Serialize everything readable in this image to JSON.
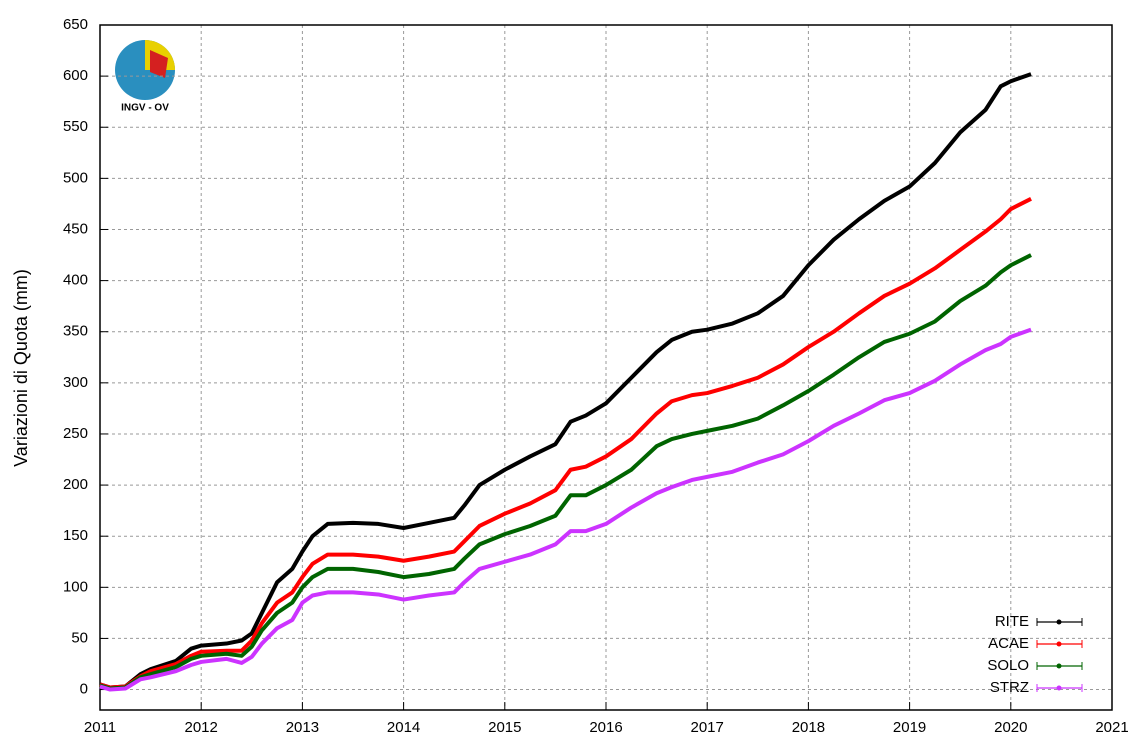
{
  "chart_data": {
    "type": "line",
    "y_label": "Variazioni di Quota (mm)",
    "logo_label": "INGV - OV",
    "x": [
      2011.0,
      2011.1,
      2011.25,
      2011.4,
      2011.5,
      2011.75,
      2011.9,
      2012.0,
      2012.25,
      2012.4,
      2012.5,
      2012.6,
      2012.75,
      2012.9,
      2013.0,
      2013.1,
      2013.25,
      2013.5,
      2013.75,
      2014.0,
      2014.25,
      2014.5,
      2014.6,
      2014.75,
      2015.0,
      2015.25,
      2015.5,
      2015.65,
      2015.8,
      2016.0,
      2016.25,
      2016.5,
      2016.65,
      2016.85,
      2017.0,
      2017.25,
      2017.5,
      2017.75,
      2018.0,
      2018.25,
      2018.5,
      2018.75,
      2019.0,
      2019.25,
      2019.5,
      2019.75,
      2019.9,
      2020.0,
      2020.2
    ],
    "series": [
      {
        "name": "RITE",
        "color": "#000000",
        "values": [
          5,
          2,
          3,
          15,
          20,
          28,
          40,
          43,
          45,
          48,
          55,
          75,
          105,
          118,
          135,
          150,
          162,
          163,
          162,
          158,
          163,
          168,
          180,
          200,
          215,
          228,
          240,
          262,
          268,
          280,
          305,
          330,
          342,
          350,
          352,
          358,
          368,
          385,
          415,
          440,
          460,
          478,
          492,
          515,
          545,
          567,
          590,
          595,
          602
        ]
      },
      {
        "name": "ACAE",
        "color": "#ff0000",
        "values": [
          5,
          2,
          3,
          13,
          18,
          25,
          33,
          37,
          38,
          38,
          48,
          65,
          85,
          95,
          110,
          123,
          132,
          132,
          130,
          126,
          130,
          135,
          145,
          160,
          172,
          182,
          195,
          215,
          218,
          228,
          245,
          270,
          282,
          288,
          290,
          297,
          305,
          318,
          335,
          350,
          368,
          385,
          397,
          412,
          430,
          448,
          460,
          470,
          480
        ]
      },
      {
        "name": "SOLO",
        "color": "#006400",
        "values": [
          4,
          1,
          2,
          12,
          15,
          22,
          30,
          33,
          35,
          33,
          42,
          58,
          75,
          85,
          100,
          110,
          118,
          118,
          115,
          110,
          113,
          118,
          128,
          142,
          152,
          160,
          170,
          190,
          190,
          200,
          215,
          238,
          245,
          250,
          253,
          258,
          265,
          278,
          292,
          308,
          325,
          340,
          348,
          360,
          380,
          395,
          408,
          415,
          425
        ]
      },
      {
        "name": "STRZ",
        "color": "#cc33ff",
        "values": [
          3,
          0,
          1,
          10,
          12,
          18,
          24,
          27,
          30,
          26,
          32,
          45,
          60,
          68,
          85,
          92,
          95,
          95,
          93,
          88,
          92,
          95,
          105,
          118,
          125,
          132,
          142,
          155,
          155,
          162,
          178,
          192,
          198,
          205,
          208,
          213,
          222,
          230,
          243,
          258,
          270,
          283,
          290,
          302,
          318,
          332,
          338,
          345,
          352
        ]
      }
    ],
    "xlim": [
      2011,
      2021
    ],
    "xticks": [
      2011,
      2012,
      2013,
      2014,
      2015,
      2016,
      2017,
      2018,
      2019,
      2020,
      2021
    ],
    "ylim": [
      -20,
      650
    ],
    "yticks": [
      0,
      50,
      100,
      150,
      200,
      250,
      300,
      350,
      400,
      450,
      500,
      550,
      600,
      650
    ],
    "grid": true,
    "legend": "lower right"
  }
}
